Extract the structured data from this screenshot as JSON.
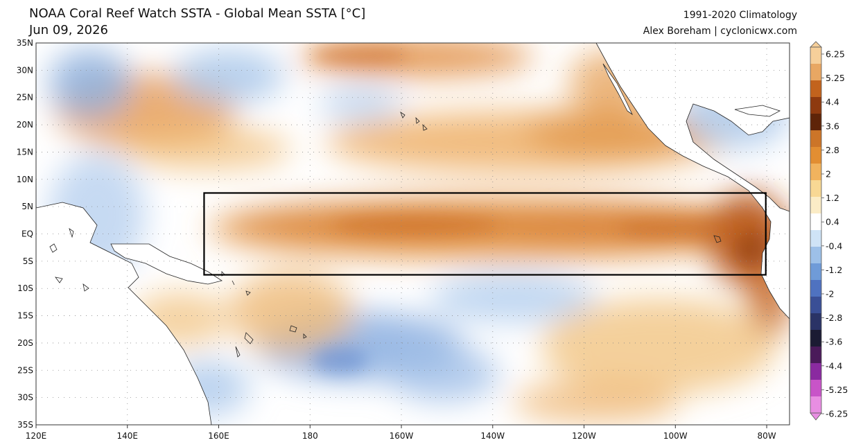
{
  "header": {
    "title": "NOAA Coral Reef Watch SSTA - Global Mean SSTA [°C]",
    "date": "Jun 09, 2026",
    "climatology": "1991-2020 Climatology",
    "credit": "Alex Boreham | cyclonicwx.com"
  },
  "map": {
    "lat_labels": [
      "35N",
      "30N",
      "25N",
      "20N",
      "15N",
      "10N",
      "5N",
      "EQ",
      "5S",
      "10S",
      "15S",
      "20S",
      "25S",
      "30S",
      "35S"
    ],
    "lon_labels": [
      "120E",
      "140E",
      "160E",
      "180",
      "160W",
      "140W",
      "120W",
      "100W",
      "80W"
    ],
    "region_box": {
      "lon_west": 156.8,
      "lon_east": -80.2,
      "lat_north": 7.5,
      "lat_south": -7.5
    }
  },
  "colorbar": {
    "labels": [
      "6.25",
      "5.25",
      "4.4",
      "3.6",
      "2.8",
      "2",
      "1.2",
      "0.4",
      "-0.4",
      "-1.2",
      "-2",
      "-2.8",
      "-3.6",
      "-4.4",
      "-5.25",
      "-6.25"
    ],
    "colors": [
      "#f6cf9a",
      "#e8a763",
      "#c2631d",
      "#8e3a0f",
      "#5e2408",
      "#cc7528",
      "#e28e32",
      "#f1b35e",
      "#f8d894",
      "#fbecc6",
      "#ffffff",
      "#cfe3f6",
      "#9dc0e8",
      "#6f9bd8",
      "#4f72c0",
      "#3a4f96",
      "#2a3366",
      "#1b1b33",
      "#4a1a5a",
      "#8a2aa0",
      "#c854c8",
      "#e88ee2"
    ]
  },
  "chart_data": {
    "type": "heatmap",
    "variable": "SSTA [°C]",
    "lon_range": [
      120,
      285
    ],
    "lat_range": [
      -35,
      35
    ],
    "anomaly_centers": [
      {
        "lon": 200,
        "lat": 0,
        "value": 1.6
      },
      {
        "lon": 240,
        "lat": 0,
        "value": 2.0
      },
      {
        "lon": 275,
        "lat": -2,
        "value": 3.2
      },
      {
        "lon": 240,
        "lat": 18,
        "value": 1.4
      },
      {
        "lon": 145,
        "lat": 24,
        "value": 1.4
      },
      {
        "lon": 190,
        "lat": 33,
        "value": 1.6
      },
      {
        "lon": 130,
        "lat": 28,
        "value": -1.2
      },
      {
        "lon": 220,
        "lat": -12,
        "value": -1.0
      },
      {
        "lon": 210,
        "lat": -25,
        "value": -1.4
      },
      {
        "lon": 260,
        "lat": -25,
        "value": 1.0
      }
    ]
  }
}
